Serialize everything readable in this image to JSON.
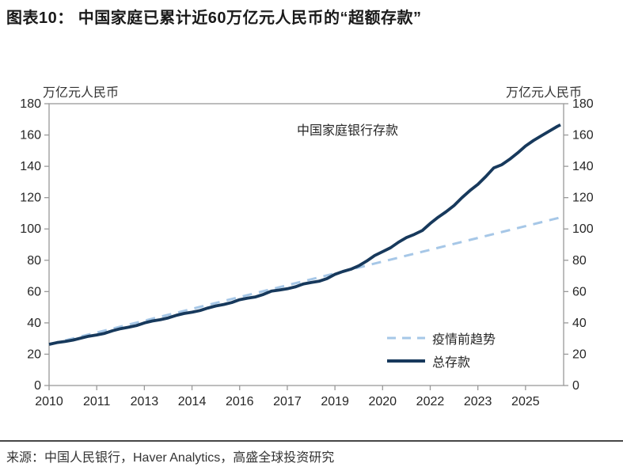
{
  "header": {
    "title": "图表10：  中国家庭已累计近60万亿元人民币的“超额存款”"
  },
  "chart": {
    "unit_left": "万亿元人民币",
    "unit_right": "万亿元人民币",
    "annotation": "中国家庭银行存款",
    "legend": [
      {
        "label": "疫情前趋势",
        "style": "dashed",
        "color": "#A6C7E7"
      },
      {
        "label": "总存款",
        "style": "solid",
        "color": "#17395C"
      }
    ]
  },
  "footer": {
    "source": "来源：中国人民银行，Haver Analytics，高盛全球投资研究"
  },
  "colors": {
    "total_deposits": "#17395C",
    "pre_covid_trend": "#A6C7E7",
    "axis": "#999999",
    "tick_text": "#262626",
    "title_text": "#1a1a1a"
  },
  "chart_data": {
    "type": "line",
    "title": "中国家庭银行存款",
    "xlabel": "",
    "ylabel": "万亿元人民币",
    "grid": false,
    "legend_position": "lower right",
    "xlim": [
      2010,
      2026.2
    ],
    "ylim": [
      0,
      180
    ],
    "yticks": [
      0,
      20,
      40,
      60,
      80,
      100,
      120,
      140,
      160,
      180
    ],
    "xticks": [
      {
        "x": 2010,
        "label": "2010"
      },
      {
        "x": 2011.5,
        "label": "2011"
      },
      {
        "x": 2013,
        "label": "2013"
      },
      {
        "x": 2014.5,
        "label": "2014"
      },
      {
        "x": 2016,
        "label": "2016"
      },
      {
        "x": 2017.5,
        "label": "2017"
      },
      {
        "x": 2019,
        "label": "2019"
      },
      {
        "x": 2020.5,
        "label": "2020"
      },
      {
        "x": 2022,
        "label": "2022"
      },
      {
        "x": 2023.5,
        "label": "2023"
      },
      {
        "x": 2025,
        "label": "2025"
      }
    ],
    "series": [
      {
        "name": "疫情前趋势",
        "style": "dashed",
        "color": "#A6C7E7",
        "points": [
          [
            2010,
            26.3
          ],
          [
            2026.15,
            107.6
          ]
        ]
      },
      {
        "name": "总存款",
        "style": "solid",
        "color": "#17395C",
        "points": [
          [
            2010,
            26.3
          ],
          [
            2010.25,
            27.4
          ],
          [
            2010.5,
            28.1
          ],
          [
            2010.75,
            29.0
          ],
          [
            2011,
            30.3
          ],
          [
            2011.25,
            31.5
          ],
          [
            2011.5,
            32.3
          ],
          [
            2011.75,
            33.3
          ],
          [
            2012,
            35.0
          ],
          [
            2012.25,
            36.3
          ],
          [
            2012.5,
            37.2
          ],
          [
            2012.75,
            38.3
          ],
          [
            2013,
            40.0
          ],
          [
            2013.25,
            41.2
          ],
          [
            2013.5,
            42.0
          ],
          [
            2013.75,
            43.2
          ],
          [
            2014,
            44.8
          ],
          [
            2014.25,
            46.0
          ],
          [
            2014.5,
            46.8
          ],
          [
            2014.75,
            47.9
          ],
          [
            2015,
            49.5
          ],
          [
            2015.25,
            50.8
          ],
          [
            2015.5,
            51.8
          ],
          [
            2015.75,
            53.0
          ],
          [
            2016,
            54.8
          ],
          [
            2016.25,
            55.8
          ],
          [
            2016.5,
            56.6
          ],
          [
            2016.75,
            58.2
          ],
          [
            2017,
            60.3
          ],
          [
            2017.25,
            61.0
          ],
          [
            2017.5,
            61.8
          ],
          [
            2017.75,
            63.0
          ],
          [
            2018,
            64.8
          ],
          [
            2018.25,
            65.8
          ],
          [
            2018.5,
            66.6
          ],
          [
            2018.75,
            68.3
          ],
          [
            2019,
            71.0
          ],
          [
            2019.25,
            72.8
          ],
          [
            2019.5,
            74.3
          ],
          [
            2019.75,
            76.5
          ],
          [
            2020,
            79.5
          ],
          [
            2020.25,
            83.0
          ],
          [
            2020.5,
            85.5
          ],
          [
            2020.75,
            88.0
          ],
          [
            2021,
            91.5
          ],
          [
            2021.25,
            94.5
          ],
          [
            2021.5,
            96.5
          ],
          [
            2021.75,
            99.0
          ],
          [
            2022,
            103.5
          ],
          [
            2022.25,
            107.5
          ],
          [
            2022.5,
            111.0
          ],
          [
            2022.75,
            115.0
          ],
          [
            2023,
            120.0
          ],
          [
            2023.25,
            124.5
          ],
          [
            2023.5,
            128.5
          ],
          [
            2023.75,
            133.5
          ],
          [
            2024,
            139.0
          ],
          [
            2024.25,
            141.0
          ],
          [
            2024.5,
            144.5
          ],
          [
            2024.75,
            148.5
          ],
          [
            2025,
            153.0
          ],
          [
            2025.25,
            156.5
          ],
          [
            2025.5,
            159.5
          ],
          [
            2025.75,
            162.5
          ],
          [
            2026,
            165.5
          ],
          [
            2026.1,
            166.5
          ]
        ]
      }
    ]
  }
}
